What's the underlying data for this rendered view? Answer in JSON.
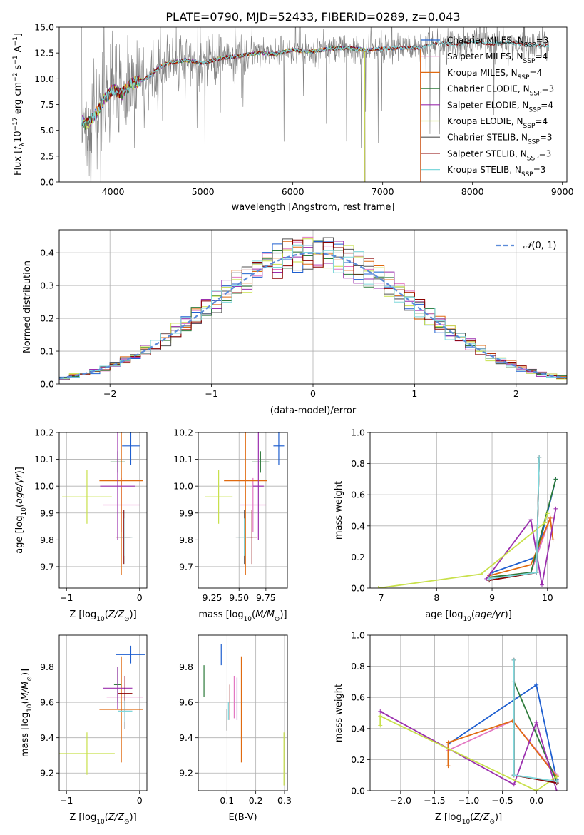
{
  "figure_title": "PLATE=0790, MJD=52433, FIBERID=0289, z=0.043",
  "colors": {
    "Chabrier MILES": "#1f5fd0",
    "Salpeter MILES": "#e377c2",
    "Kroupa MILES": "#e06a10",
    "Chabrier ELODIE": "#2d7a3a",
    "Salpeter ELODIE": "#9b2fae",
    "Kroupa ELODIE": "#c8e04a",
    "Chabrier STELIB": "#555555",
    "Salpeter STELIB": "#8b0000",
    "Kroupa STELIB": "#7fd8dc",
    "data": "#808080",
    "normal": "#5b8bd9"
  },
  "legend_models": [
    {
      "name": "Chabrier MILES",
      "nssp": "3"
    },
    {
      "name": "Salpeter MILES",
      "nssp": "4"
    },
    {
      "name": "Kroupa MILES",
      "nssp": "4"
    },
    {
      "name": "Chabrier ELODIE",
      "nssp": "3"
    },
    {
      "name": "Salpeter ELODIE",
      "nssp": "4"
    },
    {
      "name": "Kroupa ELODIE",
      "nssp": "4"
    },
    {
      "name": "Chabrier STELIB",
      "nssp": "3"
    },
    {
      "name": "Salpeter STELIB",
      "nssp": "3"
    },
    {
      "name": "Kroupa STELIB",
      "nssp": "3"
    }
  ],
  "chart_data": [
    {
      "id": "spectrum",
      "type": "line",
      "xlabel": "wavelength [Angstrom, rest frame]",
      "ylabel": "Flux [f_λ10^-17 erg cm^-2 s^-1 A^-1]",
      "xlim": [
        3400,
        9050
      ],
      "ylim": [
        0,
        15
      ],
      "xticks": [
        4000,
        5000,
        6000,
        7000,
        8000,
        9000
      ],
      "yticks": [
        0.0,
        2.5,
        5.0,
        7.5,
        10.0,
        12.5,
        15.0
      ],
      "data_envelope": {
        "wavelength": [
          3650,
          3700,
          3800,
          3900,
          4000,
          4100,
          4200,
          4300,
          4400,
          4500,
          4600,
          4800,
          5000,
          5200,
          5400,
          5600,
          5800,
          6000,
          6200,
          6400,
          6600,
          6800,
          7000,
          7200,
          7400,
          7600,
          7800,
          8000,
          8200,
          8400,
          8600,
          8800
        ],
        "flux": [
          6.0,
          5.5,
          6.5,
          8.0,
          9.0,
          8.5,
          9.5,
          9.8,
          10.2,
          11.0,
          11.5,
          11.8,
          11.5,
          12.0,
          12.2,
          12.5,
          12.4,
          12.8,
          12.6,
          12.9,
          13.0,
          12.8,
          12.9,
          13.0,
          13.0,
          13.5,
          13.3,
          13.6,
          13.4,
          13.5,
          13.3,
          13.2
        ]
      },
      "data_range": [
        3650,
        8850
      ],
      "model_ranges": {
        "MILES": [
          3650,
          7420
        ],
        "ELODIE": [
          3650,
          6800
        ],
        "STELIB": [
          3650,
          8850
        ]
      },
      "legend_position": "right"
    },
    {
      "id": "residual_hist",
      "type": "step-histogram",
      "xlabel": "(data-model)/error",
      "ylabel": "Normed distribution",
      "xlim": [
        -2.5,
        2.5
      ],
      "ylim": [
        0,
        0.47
      ],
      "xticks": [
        -2,
        -1,
        0,
        1,
        2
      ],
      "yticks": [
        0.0,
        0.1,
        0.2,
        0.3,
        0.4
      ],
      "reference_label": "N(0,1)",
      "grid": true,
      "legend_position": "top-right"
    },
    {
      "id": "age_vs_Z",
      "type": "errorbar",
      "xlabel": "Z [log10(Z/Z_sun)]",
      "ylabel": "age [log10(age/yr)]",
      "xlim": [
        -1.1,
        0.1
      ],
      "ylim": [
        9.62,
        10.2
      ],
      "xticks": [
        -1,
        0
      ],
      "yticks": [
        9.7,
        9.8,
        9.9,
        10.0,
        10.1,
        10.2
      ],
      "points": [
        {
          "model": "Chabrier MILES",
          "x": -0.12,
          "xerr": 0.12,
          "y": 10.15,
          "yerr": 0.07
        },
        {
          "model": "Salpeter MILES",
          "x": -0.25,
          "xerr": 0.25,
          "y": 9.93,
          "yerr": 0.1
        },
        {
          "model": "Kroupa MILES",
          "x": -0.25,
          "xerr": 0.3,
          "y": 10.02,
          "yerr": 0.35
        },
        {
          "model": "Chabrier ELODIE",
          "x": -0.3,
          "xerr": 0.1,
          "y": 10.09,
          "yerr": 0.04
        },
        {
          "model": "Salpeter ELODIE",
          "x": -0.3,
          "xerr": 0.24,
          "y": 10.0,
          "yerr": 0.2
        },
        {
          "model": "Kroupa ELODIE",
          "x": -0.72,
          "xerr": 0.34,
          "y": 9.96,
          "yerr": 0.1
        },
        {
          "model": "Chabrier STELIB",
          "x": -0.2,
          "xerr": 0.1,
          "y": 9.81,
          "yerr": 0.1
        },
        {
          "model": "Salpeter STELIB",
          "x": -0.22,
          "xerr": 0.1,
          "y": 9.81,
          "yerr": 0.1
        },
        {
          "model": "Kroupa STELIB",
          "x": -0.2,
          "xerr": 0.1,
          "y": 9.81,
          "yerr": 0.07
        }
      ],
      "grid": true
    },
    {
      "id": "age_vs_mass",
      "type": "errorbar",
      "xlabel": "mass [log10(M/M_sun)]",
      "ylabel": "",
      "xlim": [
        9.12,
        9.95
      ],
      "ylim": [
        9.62,
        10.2
      ],
      "xticks": [
        9.25,
        9.5,
        9.75
      ],
      "yticks": [
        9.7,
        9.8,
        9.9,
        10.0,
        10.1,
        10.2
      ],
      "points": [
        {
          "model": "Chabrier MILES",
          "x": 9.87,
          "xerr": 0.05,
          "y": 10.15,
          "yerr": 0.07
        },
        {
          "model": "Salpeter MILES",
          "x": 9.63,
          "xerr": 0.12,
          "y": 9.93,
          "yerr": 0.1
        },
        {
          "model": "Kroupa MILES",
          "x": 9.56,
          "xerr": 0.2,
          "y": 10.02,
          "yerr": 0.35
        },
        {
          "model": "Chabrier ELODIE",
          "x": 9.7,
          "xerr": 0.08,
          "y": 10.09,
          "yerr": 0.04
        },
        {
          "model": "Salpeter ELODIE",
          "x": 9.68,
          "xerr": 0.05,
          "y": 10.0,
          "yerr": 0.2
        },
        {
          "model": "Kroupa ELODIE",
          "x": 9.31,
          "xerr": 0.13,
          "y": 9.96,
          "yerr": 0.1
        },
        {
          "model": "Chabrier STELIB",
          "x": 9.55,
          "xerr": 0.08,
          "y": 9.81,
          "yerr": 0.1
        },
        {
          "model": "Salpeter STELIB",
          "x": 9.62,
          "xerr": 0.05,
          "y": 9.81,
          "yerr": 0.1
        },
        {
          "model": "Kroupa STELIB",
          "x": 9.55,
          "xerr": 0.06,
          "y": 9.81,
          "yerr": 0.07
        }
      ],
      "grid": true
    },
    {
      "id": "weight_vs_age",
      "type": "line",
      "xlabel": "age [log10(age/yr)]",
      "ylabel": "mass weight",
      "xlim": [
        6.8,
        10.35
      ],
      "ylim": [
        0,
        1
      ],
      "xticks": [
        7,
        8,
        9,
        10
      ],
      "yticks": [
        0.0,
        0.2,
        0.4,
        0.6,
        0.8,
        1.0
      ],
      "series": [
        {
          "model": "Chabrier MILES",
          "x": [
            9.0,
            9.8,
            10.15
          ],
          "y": [
            0.1,
            0.2,
            0.7
          ]
        },
        {
          "model": "Salpeter MILES",
          "x": [
            8.95,
            9.7,
            10.05
          ],
          "y": [
            0.07,
            0.1,
            0.45
          ]
        },
        {
          "model": "Kroupa MILES",
          "x": [
            8.95,
            9.7,
            10.05,
            10.1
          ],
          "y": [
            0.08,
            0.15,
            0.45,
            0.31
          ]
        },
        {
          "model": "Chabrier ELODIE",
          "x": [
            8.95,
            9.7,
            10.15
          ],
          "y": [
            0.07,
            0.1,
            0.7
          ]
        },
        {
          "model": "Salpeter ELODIE",
          "x": [
            8.9,
            9.7,
            9.9,
            10.15
          ],
          "y": [
            0.06,
            0.44,
            0.02,
            0.51
          ]
        },
        {
          "model": "Kroupa ELODIE",
          "x": [
            6.95,
            8.8,
            9.95,
            10.0
          ],
          "y": [
            0.0,
            0.09,
            0.42,
            0.48
          ]
        },
        {
          "model": "Chabrier STELIB",
          "x": [
            8.95,
            9.8,
            9.85
          ],
          "y": [
            0.05,
            0.1,
            0.84
          ]
        },
        {
          "model": "Salpeter STELIB",
          "x": [
            8.95,
            9.8,
            9.85
          ],
          "y": [
            0.05,
            0.1,
            0.84
          ]
        },
        {
          "model": "Kroupa STELIB",
          "x": [
            8.95,
            9.8,
            9.85
          ],
          "y": [
            0.06,
            0.1,
            0.84
          ]
        }
      ],
      "grid": true
    },
    {
      "id": "mass_vs_Z",
      "type": "errorbar",
      "xlabel": "Z [log10(Z/Z_sun)]",
      "ylabel": "mass [log10(M/M_sun)]",
      "xlim": [
        -1.1,
        0.1
      ],
      "ylim": [
        9.1,
        9.98
      ],
      "xticks": [
        -1,
        0
      ],
      "yticks": [
        9.2,
        9.4,
        9.6,
        9.8
      ],
      "points": [
        {
          "model": "Chabrier MILES",
          "x": -0.12,
          "xerr": 0.2,
          "y": 9.87,
          "yerr": 0.05
        },
        {
          "model": "Salpeter MILES",
          "x": -0.2,
          "xerr": 0.25,
          "y": 9.63,
          "yerr": 0.12
        },
        {
          "model": "Kroupa MILES",
          "x": -0.25,
          "xerr": 0.3,
          "y": 9.56,
          "yerr": 0.3
        },
        {
          "model": "Chabrier ELODIE",
          "x": -0.3,
          "xerr": 0.05,
          "y": 9.7,
          "yerr": 0.1
        },
        {
          "model": "Salpeter ELODIE",
          "x": -0.3,
          "xerr": 0.2,
          "y": 9.68,
          "yerr": 0.12
        },
        {
          "model": "Kroupa ELODIE",
          "x": -0.72,
          "xerr": 0.38,
          "y": 9.31,
          "yerr": 0.12
        },
        {
          "model": "Chabrier STELIB",
          "x": -0.2,
          "xerr": 0.1,
          "y": 9.55,
          "yerr": 0.1
        },
        {
          "model": "Salpeter STELIB",
          "x": -0.2,
          "xerr": 0.1,
          "y": 9.65,
          "yerr": 0.1
        },
        {
          "model": "Kroupa STELIB",
          "x": -0.2,
          "xerr": 0.1,
          "y": 9.55,
          "yerr": 0.06
        }
      ],
      "grid": true
    },
    {
      "id": "mass_vs_ebv",
      "type": "errorbar",
      "xlabel": "E(B-V)",
      "ylabel": "",
      "xlim": [
        0.0,
        0.31
      ],
      "ylim": [
        9.1,
        9.98
      ],
      "xticks": [
        0.1,
        0.2,
        0.3
      ],
      "yticks": [
        9.2,
        9.4,
        9.6,
        9.8
      ],
      "points": [
        {
          "model": "Chabrier MILES",
          "x": 0.08,
          "xerr": 0.0,
          "y": 9.87,
          "yerr": 0.06
        },
        {
          "model": "Salpeter MILES",
          "x": 0.125,
          "xerr": 0.0,
          "y": 9.63,
          "yerr": 0.12
        },
        {
          "model": "Kroupa MILES",
          "x": 0.15,
          "xerr": 0.0,
          "y": 9.56,
          "yerr": 0.3
        },
        {
          "model": "Chabrier ELODIE",
          "x": 0.02,
          "xerr": 0.0,
          "y": 9.72,
          "yerr": 0.09
        },
        {
          "model": "Salpeter ELODIE",
          "x": 0.135,
          "xerr": 0.0,
          "y": 9.62,
          "yerr": 0.12
        },
        {
          "model": "Kroupa ELODIE",
          "x": 0.298,
          "xerr": 0.0,
          "y": 9.28,
          "yerr": 0.15
        },
        {
          "model": "Chabrier STELIB",
          "x": 0.1,
          "xerr": 0.0,
          "y": 9.5,
          "yerr": 0.06
        },
        {
          "model": "Salpeter STELIB",
          "x": 0.11,
          "xerr": 0.0,
          "y": 9.6,
          "yerr": 0.1
        },
        {
          "model": "Kroupa STELIB",
          "x": 0.105,
          "xerr": 0.0,
          "y": 9.55,
          "yerr": 0.05
        }
      ],
      "grid": true
    },
    {
      "id": "weight_vs_Z",
      "type": "line",
      "xlabel": "Z [log10(Z/Z_sun)]",
      "ylabel": "mass weight",
      "xlim": [
        -2.45,
        0.45
      ],
      "ylim": [
        0,
        1
      ],
      "xticks": [
        -2.0,
        -1.5,
        -1.0,
        -0.5,
        0.0
      ],
      "yticks": [
        0.0,
        0.2,
        0.4,
        0.6,
        0.8,
        1.0
      ],
      "series": [
        {
          "model": "Chabrier MILES",
          "x": [
            -1.3,
            0.0,
            0.3
          ],
          "y": [
            0.3,
            0.68,
            0.07
          ]
        },
        {
          "model": "Salpeter MILES",
          "x": [
            -1.3,
            -0.35,
            0.3
          ],
          "y": [
            0.26,
            0.45,
            0.1
          ]
        },
        {
          "model": "Kroupa MILES",
          "x": [
            -1.3,
            -1.3,
            -0.35,
            0.3
          ],
          "y": [
            0.16,
            0.31,
            0.45,
            0.09
          ]
        },
        {
          "model": "Chabrier ELODIE",
          "x": [
            -0.33,
            -0.33,
            0.3
          ],
          "y": [
            0.1,
            0.7,
            0.06
          ]
        },
        {
          "model": "Salpeter ELODIE",
          "x": [
            -2.3,
            -0.33,
            0.0,
            0.3
          ],
          "y": [
            0.51,
            0.04,
            0.44,
            0.0
          ]
        },
        {
          "model": "Kroupa ELODIE",
          "x": [
            -2.3,
            -2.3,
            0.0,
            0.3
          ],
          "y": [
            0.42,
            0.48,
            0.0,
            0.09
          ]
        },
        {
          "model": "Chabrier STELIB",
          "x": [
            -0.33,
            -0.33,
            0.3
          ],
          "y": [
            0.84,
            0.1,
            0.05
          ]
        },
        {
          "model": "Salpeter STELIB",
          "x": [
            -0.33,
            -0.33,
            0.3
          ],
          "y": [
            0.84,
            0.1,
            0.05
          ]
        },
        {
          "model": "Kroupa STELIB",
          "x": [
            -0.33,
            -0.33,
            0.3
          ],
          "y": [
            0.84,
            0.1,
            0.06
          ]
        }
      ],
      "grid": true
    }
  ]
}
